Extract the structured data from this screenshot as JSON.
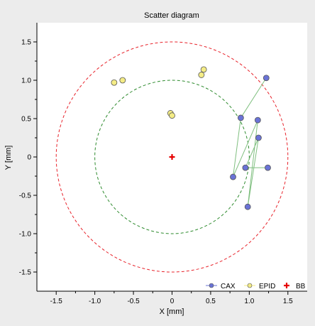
{
  "chart_data": {
    "type": "scatter",
    "title": "Scatter diagram",
    "xlabel": "X [mm]",
    "ylabel": "Y [mm]",
    "xlim": [
      -1.75,
      1.75
    ],
    "ylim": [
      -1.75,
      1.75
    ],
    "xticks": [
      "-1.5",
      "-1.0",
      "-0.5",
      "0",
      "0.5",
      "1.0",
      "1.5"
    ],
    "yticks": [
      "1.5",
      "1.0",
      "0.5",
      "0",
      "-0.5",
      "-1.0",
      "-1.5"
    ],
    "grid": false,
    "legend_position": "bottom-right",
    "circles": [
      {
        "radius": 1.5,
        "color": "#e8232b",
        "style": "dashed"
      },
      {
        "radius": 1.0,
        "color": "#2e8b2e",
        "style": "dashed"
      }
    ],
    "series": [
      {
        "name": "CAX",
        "color": "#6a73d6",
        "connected": true,
        "line_color": "#7fbf7f",
        "points": [
          {
            "x": 1.22,
            "y": 1.03
          },
          {
            "x": 0.89,
            "y": 0.51
          },
          {
            "x": 0.79,
            "y": -0.26
          },
          {
            "x": 1.11,
            "y": 0.48
          },
          {
            "x": 0.98,
            "y": -0.65
          },
          {
            "x": 1.12,
            "y": 0.25
          },
          {
            "x": 0.95,
            "y": -0.14
          },
          {
            "x": 1.24,
            "y": -0.14
          }
        ]
      },
      {
        "name": "EPID",
        "color": "#f4ec86",
        "connected": false,
        "points": [
          {
            "x": -0.75,
            "y": 0.97
          },
          {
            "x": -0.64,
            "y": 1.0
          },
          {
            "x": 0.38,
            "y": 1.07
          },
          {
            "x": 0.41,
            "y": 1.14
          },
          {
            "x": -0.02,
            "y": 0.57
          },
          {
            "x": 0.0,
            "y": 0.54
          }
        ]
      },
      {
        "name": "BB",
        "color": "#e60000",
        "marker": "plus",
        "points": [
          {
            "x": 0,
            "y": 0
          }
        ]
      }
    ]
  }
}
